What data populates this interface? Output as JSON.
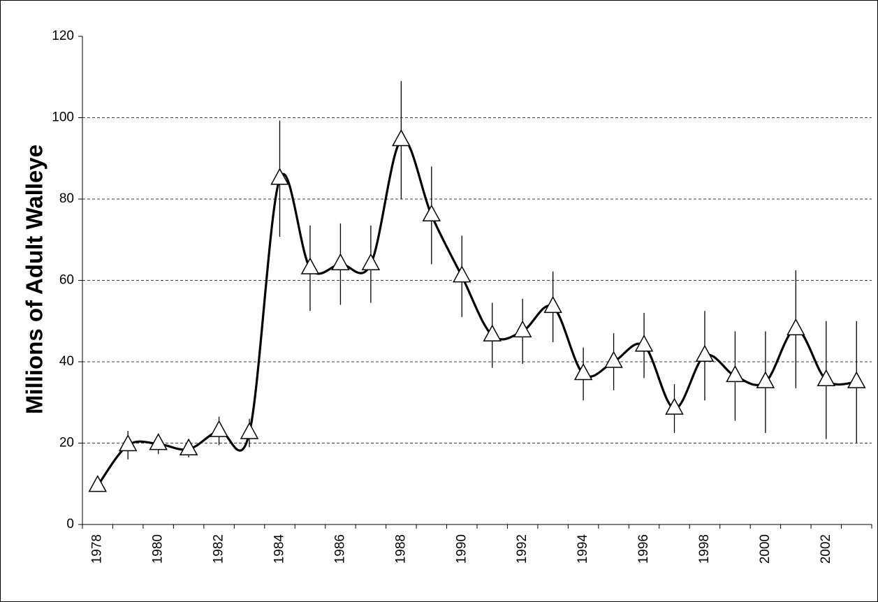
{
  "chart_data": {
    "type": "line",
    "y_label": "Millions of Adult Walleye",
    "categories": [
      "1978",
      null,
      "1980",
      null,
      "1982",
      null,
      "1984",
      null,
      "1986",
      null,
      "1988",
      null,
      "1990",
      null,
      "1992",
      null,
      "1994",
      null,
      "1996",
      null,
      "1998",
      null,
      "2000",
      null,
      "2002",
      null
    ],
    "values": [
      9.5,
      19.5,
      19.8,
      18.5,
      23,
      22.5,
      85,
      63,
      64,
      64,
      94.5,
      76,
      61,
      46.5,
      47.5,
      53.5,
      37,
      40,
      44,
      28.5,
      41.5,
      36.5,
      35,
      48,
      35.5,
      35
    ],
    "errors": [
      1,
      3.5,
      2.5,
      2,
      3.5,
      3.5,
      14.3,
      10.5,
      10,
      9.5,
      14.5,
      12,
      10,
      8,
      8,
      8.7,
      6.5,
      7,
      8,
      6,
      11,
      11,
      12.5,
      14.5,
      14.5,
      15
    ],
    "color": "#000000",
    "ylim": [
      0,
      120
    ],
    "yticks": [
      0,
      20,
      40,
      60,
      80,
      100,
      120
    ],
    "grid": true
  }
}
